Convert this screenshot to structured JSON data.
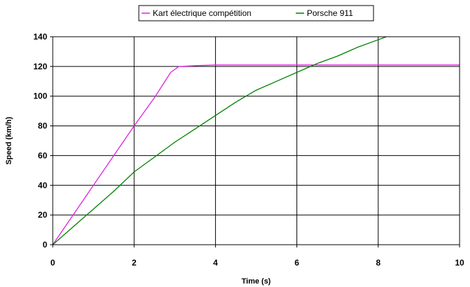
{
  "chart_data": {
    "type": "line",
    "xlabel": "Time (s)",
    "ylabel": "Speed (km/h)",
    "xlim": [
      0,
      10
    ],
    "ylim": [
      0,
      140
    ],
    "x_ticks": [
      "0",
      "2",
      "4",
      "6",
      "8",
      "10"
    ],
    "y_ticks": [
      "0",
      "20",
      "40",
      "60",
      "80",
      "100",
      "120",
      "140"
    ],
    "grid": true,
    "legend_position": "top",
    "series": [
      {
        "name": "Kart électrique compétition",
        "color": "#e020e0",
        "x": [
          0,
          0.5,
          1,
          1.5,
          2,
          2.5,
          2.9,
          3.1,
          3.5,
          4,
          5,
          6,
          7,
          8,
          9,
          10
        ],
        "y": [
          0,
          20,
          40,
          60,
          80,
          99,
          116,
          120,
          120.5,
          121,
          121,
          121,
          121,
          121,
          121,
          121
        ]
      },
      {
        "name": "Porsche 911",
        "color": "#008000",
        "x": [
          0,
          0.5,
          1,
          1.5,
          2,
          2.5,
          3,
          3.5,
          4,
          4.5,
          5,
          5.5,
          6,
          6.5,
          7,
          7.5,
          8,
          8.2
        ],
        "y": [
          0,
          12,
          24,
          36,
          49,
          59,
          69,
          78,
          87,
          96,
          104,
          110,
          116,
          122,
          127,
          133,
          138,
          140
        ]
      }
    ]
  }
}
